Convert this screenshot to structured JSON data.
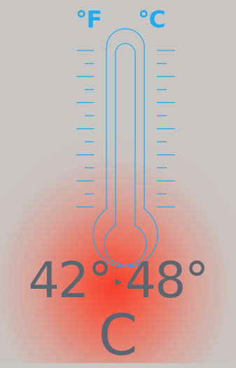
{
  "scale_labels": {
    "fahrenheit": "°F",
    "celsius": "°C"
  },
  "temperature": {
    "low": "42°",
    "high": "48°",
    "separator": "▸",
    "unit": "C"
  },
  "colors": {
    "accent": "#22aaf0",
    "text": "#5b6670",
    "background": "#c8c6c3",
    "glow": "#f83e2a"
  },
  "icons": [
    "thermometer-icon",
    "arrow-right-icon"
  ]
}
